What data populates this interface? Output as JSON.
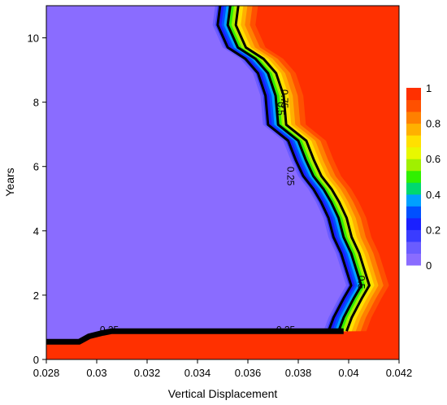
{
  "chart_data": {
    "type": "heatmap",
    "subtype": "filled-contour",
    "xlabel": "Vertical Displacement",
    "ylabel": "Years",
    "xlim": [
      0.028,
      0.042
    ],
    "ylim": [
      0,
      11
    ],
    "x_ticks": [
      "0.028",
      "0.03",
      "0.032",
      "0.034",
      "0.036",
      "0.038",
      "0.04",
      "0.042"
    ],
    "y_ticks": [
      "0",
      "2",
      "4",
      "6",
      "8",
      "10"
    ],
    "grid": false,
    "colorbar": {
      "range": [
        0,
        1
      ],
      "ticks": [
        "0",
        "0.2",
        "0.4",
        "0.6",
        "0.8",
        "1"
      ],
      "colors": [
        "#8a6cff",
        "#6a5cff",
        "#3a3cff",
        "#1a20ff",
        "#0050ff",
        "#00a0ff",
        "#00d870",
        "#30f000",
        "#a0f000",
        "#e8f800",
        "#ffe000",
        "#ffb000",
        "#ff8000",
        "#ff5000",
        "#ff3000"
      ]
    },
    "low_color": "#8a6cff",
    "high_color": "#ff3000",
    "contour_labels": [
      {
        "text": "0.25",
        "x": 0.0305,
        "y": 0.92
      },
      {
        "text": "0.25",
        "x": 0.0375,
        "y": 0.92
      },
      {
        "text": "0.75",
        "x": 0.03745,
        "y": 8.1
      },
      {
        "text": "0.5",
        "x": 0.0373,
        "y": 7.8
      },
      {
        "text": "0.25",
        "x": 0.0377,
        "y": 5.7
      },
      {
        "text": "0.5",
        "x": 0.0405,
        "y": 2.4
      }
    ],
    "boundary_curve": {
      "description": "0.5 level boundary between low (left) and high (right) regions",
      "horizontal_segment": [
        {
          "x": 0.028,
          "y": 0.55
        },
        {
          "x": 0.0293,
          "y": 0.55
        },
        {
          "x": 0.0297,
          "y": 0.72
        },
        {
          "x": 0.0302,
          "y": 0.82
        },
        {
          "x": 0.0306,
          "y": 0.88
        },
        {
          "x": 0.0398,
          "y": 0.88
        }
      ],
      "vertical_segment": [
        {
          "x": 0.0355,
          "y": 11.0
        },
        {
          "x": 0.0354,
          "y": 10.4
        },
        {
          "x": 0.0358,
          "y": 9.7
        },
        {
          "x": 0.0365,
          "y": 9.35
        },
        {
          "x": 0.037,
          "y": 8.9
        },
        {
          "x": 0.0373,
          "y": 8.2
        },
        {
          "x": 0.0374,
          "y": 7.3
        },
        {
          "x": 0.0382,
          "y": 6.8
        },
        {
          "x": 0.0385,
          "y": 6.2
        },
        {
          "x": 0.0388,
          "y": 5.7
        },
        {
          "x": 0.0392,
          "y": 5.3
        },
        {
          "x": 0.0395,
          "y": 4.9
        },
        {
          "x": 0.0398,
          "y": 4.4
        },
        {
          "x": 0.04,
          "y": 3.8
        },
        {
          "x": 0.0403,
          "y": 3.3
        },
        {
          "x": 0.0405,
          "y": 2.8
        },
        {
          "x": 0.0407,
          "y": 2.3
        },
        {
          "x": 0.0404,
          "y": 1.9
        },
        {
          "x": 0.0402,
          "y": 1.6
        },
        {
          "x": 0.04,
          "y": 1.3
        },
        {
          "x": 0.0398,
          "y": 0.88
        }
      ]
    }
  }
}
